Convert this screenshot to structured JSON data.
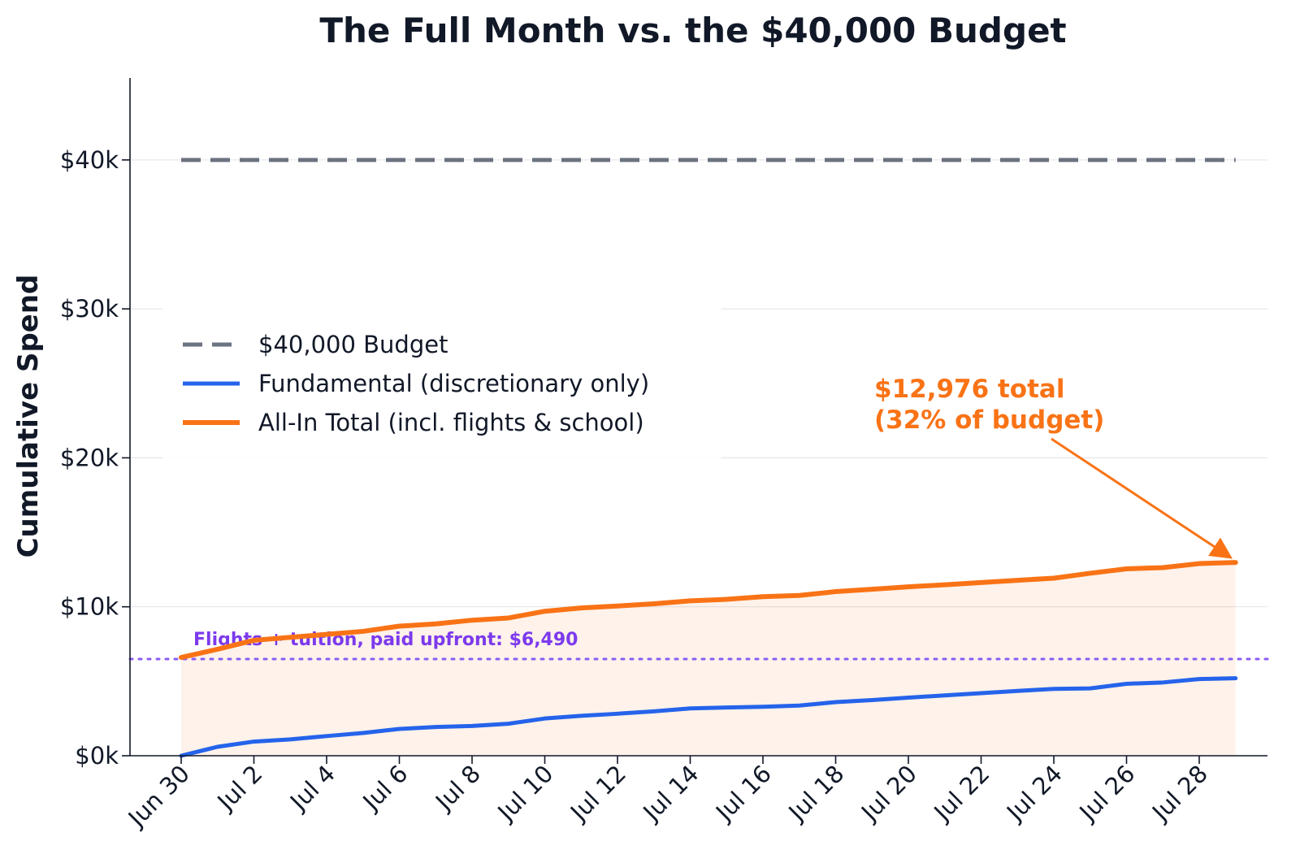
{
  "chart_data": {
    "type": "line",
    "title": "The Full Month vs. the $40,000 Budget",
    "ylabel": "Cumulative Spend",
    "xlabel": "",
    "x_start": "2025-06-30",
    "x_tick_labels": [
      "Jun 30",
      "Jul 2",
      "Jul 4",
      "Jul 6",
      "Jul 8",
      "Jul 10",
      "Jul 12",
      "Jul 14",
      "Jul 16",
      "Jul 18",
      "Jul 20",
      "Jul 22",
      "Jul 24",
      "Jul 26",
      "Jul 28"
    ],
    "y_ticks": [
      0,
      10000,
      20000,
      30000,
      40000
    ],
    "y_tick_labels": [
      "$0k",
      "$10k",
      "$20k",
      "$30k",
      "$40k"
    ],
    "ylim": [
      0,
      45500
    ],
    "grid": "horizontal",
    "legend_position": "center-left",
    "budget": {
      "name": "$40,000 Budget",
      "value": 40000,
      "color": "#6b7280"
    },
    "series": [
      {
        "name": "Fundamental (discretionary only)",
        "color": "#2563eb",
        "x": [
          "Jun 30",
          "Jul 1",
          "Jul 2",
          "Jul 3",
          "Jul 4",
          "Jul 5",
          "Jul 6",
          "Jul 7",
          "Jul 8",
          "Jul 9",
          "Jul 10",
          "Jul 11",
          "Jul 12",
          "Jul 13",
          "Jul 14",
          "Jul 15",
          "Jul 16",
          "Jul 17",
          "Jul 18",
          "Jul 19",
          "Jul 20",
          "Jul 21",
          "Jul 22",
          "Jul 23",
          "Jul 24",
          "Jul 25",
          "Jul 26",
          "Jul 27",
          "Jul 28",
          "Jul 29"
        ],
        "values": [
          0,
          600,
          950,
          1100,
          1320,
          1530,
          1800,
          1930,
          2000,
          2150,
          2500,
          2680,
          2820,
          2980,
          3180,
          3240,
          3290,
          3370,
          3600,
          3740,
          3900,
          4050,
          4200,
          4350,
          4490,
          4520,
          4830,
          4920,
          5150,
          5200
        ]
      },
      {
        "name": "All-In Total (incl. flights & school)",
        "color": "#f97316",
        "x": [
          "Jun 30",
          "Jul 1",
          "Jul 2",
          "Jul 3",
          "Jul 4",
          "Jul 5",
          "Jul 6",
          "Jul 7",
          "Jul 8",
          "Jul 9",
          "Jul 10",
          "Jul 11",
          "Jul 12",
          "Jul 13",
          "Jul 14",
          "Jul 15",
          "Jul 16",
          "Jul 17",
          "Jul 18",
          "Jul 19",
          "Jul 20",
          "Jul 21",
          "Jul 22",
          "Jul 23",
          "Jul 24",
          "Jul 25",
          "Jul 26",
          "Jul 27",
          "Jul 28",
          "Jul 29"
        ],
        "values": [
          6600,
          7150,
          7750,
          7950,
          8150,
          8350,
          8700,
          8850,
          9100,
          9250,
          9700,
          9920,
          10050,
          10200,
          10400,
          10500,
          10680,
          10760,
          11020,
          11180,
          11340,
          11480,
          11630,
          11780,
          11920,
          12250,
          12550,
          12630,
          12900,
          12976
        ]
      }
    ],
    "reference_line": {
      "value": 6490,
      "label": "Flights + tuition, paid upfront: $6,490",
      "color": "#8b5cf6",
      "label_color": "#7c3aed"
    },
    "annotation": {
      "lines": [
        "$12,976 total",
        "(32% of budget)"
      ],
      "color": "#f97316",
      "points_to": {
        "x": "Jul 29",
        "y": 12976
      }
    }
  }
}
